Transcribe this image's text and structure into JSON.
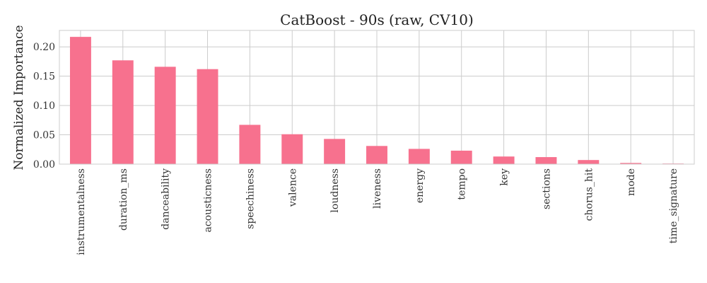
{
  "chart_data": {
    "type": "bar",
    "title": "CatBoost - 90s (raw, CV10)",
    "xlabel": "",
    "ylabel": "Normalized Importance",
    "ylim": [
      0,
      0.228
    ],
    "yticks": [
      0.0,
      0.05,
      0.1,
      0.15,
      0.2
    ],
    "ytick_labels": [
      "0.00",
      "0.05",
      "0.10",
      "0.15",
      "0.20"
    ],
    "grid": true,
    "bar_color": "#f7718e",
    "categories": [
      "instrumentalness",
      "duration_ms",
      "danceability",
      "acousticness",
      "speechiness",
      "valence",
      "loudness",
      "liveness",
      "energy",
      "tempo",
      "key",
      "sections",
      "chorus_hit",
      "mode",
      "time_signature"
    ],
    "values": [
      0.217,
      0.177,
      0.166,
      0.162,
      0.067,
      0.051,
      0.043,
      0.031,
      0.026,
      0.023,
      0.013,
      0.012,
      0.007,
      0.002,
      0.001
    ]
  }
}
